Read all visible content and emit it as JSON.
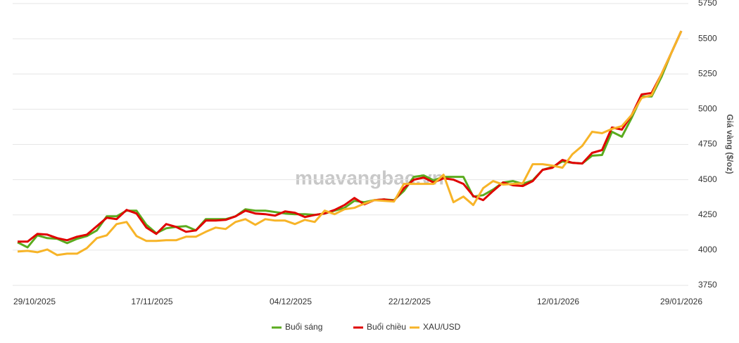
{
  "chart_data": {
    "type": "line",
    "watermark": "muavangbac.vn",
    "y_label": "Giá vàng ($/oz)",
    "categories": [
      "29/10/2025",
      null,
      null,
      null,
      null,
      null,
      null,
      null,
      null,
      null,
      null,
      null,
      null,
      "17/11/2025",
      null,
      null,
      null,
      null,
      null,
      null,
      null,
      null,
      null,
      null,
      null,
      null,
      null,
      "04/12/2025",
      null,
      null,
      null,
      null,
      null,
      null,
      null,
      null,
      null,
      null,
      null,
      "22/12/2025",
      null,
      null,
      null,
      null,
      null,
      null,
      null,
      null,
      null,
      null,
      null,
      null,
      null,
      null,
      "12/01/2026",
      null,
      null,
      null,
      null,
      null,
      null,
      null,
      null,
      null,
      null,
      null,
      null,
      "29/01/2026"
    ],
    "series": [
      {
        "name": "Buổi sáng",
        "color": "#5aab1e",
        "values": [
          4055,
          4020,
          4105,
          4085,
          4080,
          4050,
          4080,
          4100,
          4140,
          4240,
          4240,
          4280,
          4280,
          4180,
          4120,
          4155,
          4165,
          4170,
          4140,
          4220,
          4220,
          4220,
          4240,
          4290,
          4280,
          4280,
          4270,
          4260,
          4255,
          4255,
          4250,
          4260,
          4280,
          4300,
          4350,
          4340,
          4355,
          4360,
          4355,
          4420,
          4520,
          4530,
          4495,
          4520,
          4520,
          4520,
          4380,
          4390,
          4430,
          4480,
          4490,
          4470,
          4495,
          4570,
          4590,
          4630,
          4620,
          4615,
          4670,
          4675,
          4840,
          4805,
          4940,
          5090,
          5090,
          5230,
          5400,
          5555
        ]
      },
      {
        "name": "Buổi chiều",
        "color": "#e00000",
        "values": [
          4060,
          4060,
          4115,
          4110,
          4085,
          4070,
          4095,
          4110,
          4170,
          4230,
          4220,
          4285,
          4260,
          4160,
          4115,
          4185,
          4165,
          4130,
          4140,
          4210,
          4210,
          4215,
          4240,
          4280,
          4260,
          4255,
          4245,
          4275,
          4265,
          4235,
          4250,
          4260,
          4285,
          4320,
          4370,
          4325,
          4355,
          4360,
          4350,
          4440,
          4500,
          4515,
          4480,
          4510,
          4500,
          4470,
          4385,
          4355,
          4420,
          4480,
          4460,
          4455,
          4490,
          4570,
          4585,
          4640,
          4620,
          4615,
          4690,
          4710,
          4870,
          4855,
          4960,
          5105,
          5115,
          5250,
          5400,
          5555
        ]
      },
      {
        "name": "XAU/USD",
        "color": "#f7b428",
        "values": [
          3990,
          3995,
          3985,
          4005,
          3965,
          3975,
          3975,
          4015,
          4085,
          4105,
          4185,
          4200,
          4100,
          4065,
          4065,
          4070,
          4070,
          4095,
          4095,
          4130,
          4160,
          4150,
          4200,
          4220,
          4180,
          4220,
          4210,
          4210,
          4185,
          4215,
          4200,
          4280,
          4255,
          4290,
          4300,
          4330,
          4355,
          4350,
          4345,
          4470,
          4470,
          4470,
          4470,
          4535,
          4340,
          4380,
          4320,
          4440,
          4490,
          4465,
          4470,
          4475,
          4610,
          4610,
          4600,
          4585,
          4680,
          4740,
          4840,
          4830,
          4860,
          4880,
          4960,
          5080,
          5100,
          5250,
          5400,
          5555
        ]
      }
    ],
    "ylim": [
      3750,
      5750
    ],
    "yticks": [
      3750,
      4000,
      4250,
      4500,
      4750,
      5000,
      5250,
      5500,
      5750
    ],
    "grid": true,
    "legend": "bottom"
  }
}
